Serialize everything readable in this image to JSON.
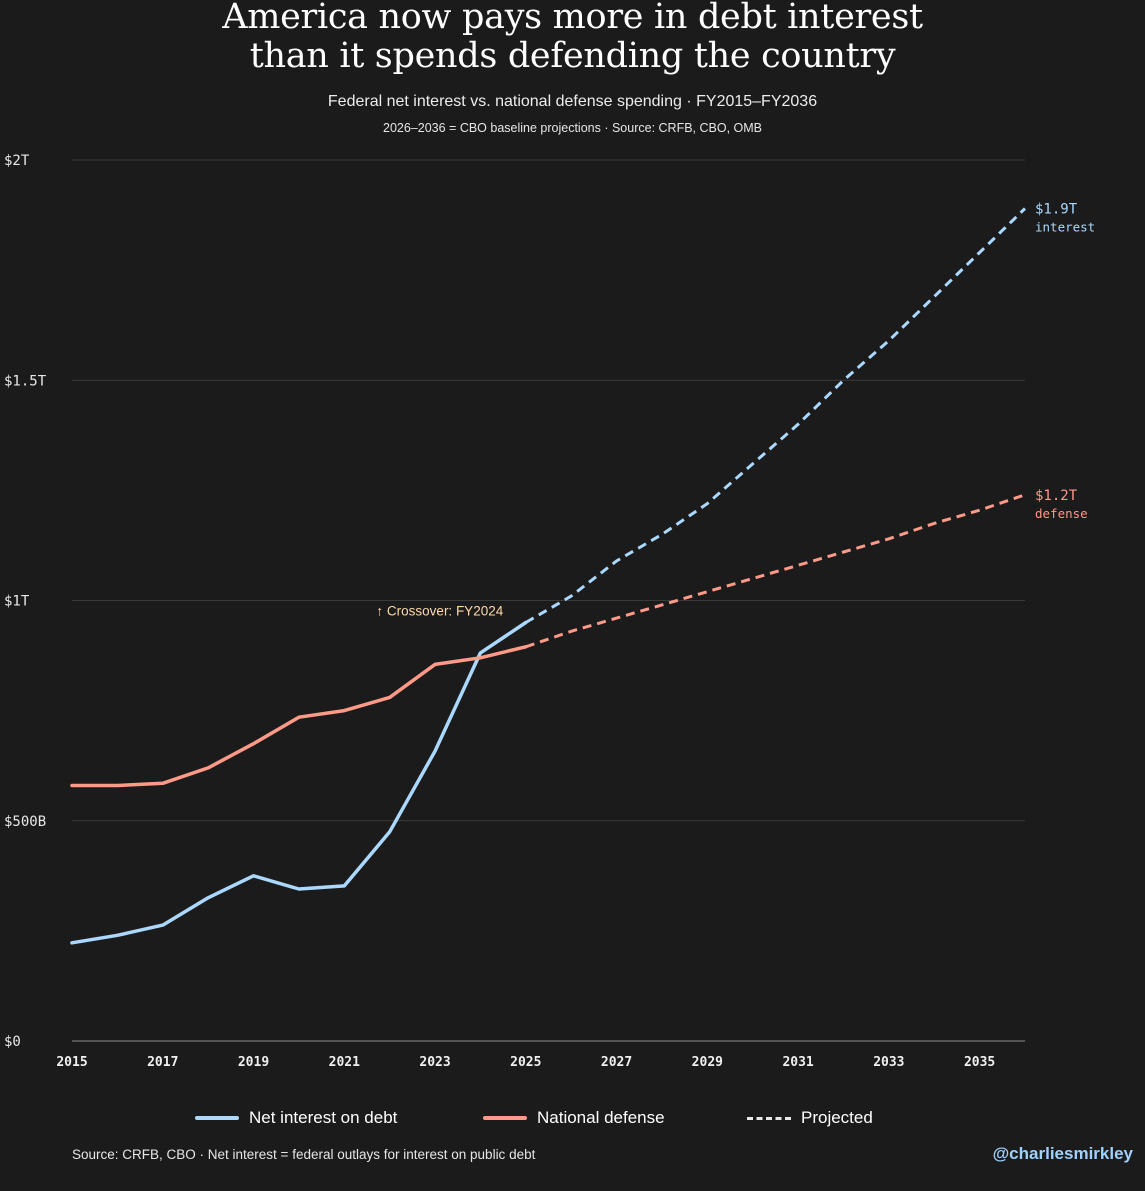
{
  "header": {
    "title_line1": "America now pays more in debt interest",
    "title_line2": "than it spends defending the country",
    "subtitle": "Federal net interest vs. national defense spending · FY2015–FY2036",
    "note": "2026–2036 = CBO baseline projections · Source: CRFB, CBO, OMB"
  },
  "colors": {
    "interest": "#aad8ff",
    "defense": "#ff9a88",
    "grid": "#3a3a3a",
    "axis": "#8a8a8a",
    "crossover": "#ffd9a8"
  },
  "chart_data": {
    "type": "line",
    "title": "America now pays more in debt interest than it spends defending the country",
    "xlabel": "",
    "ylabel": "",
    "xlim": [
      2015,
      2036
    ],
    "ylim": [
      0,
      2000
    ],
    "y_unit": "billions USD",
    "y_ticks": [
      {
        "value": 0,
        "label": "$0"
      },
      {
        "value": 500,
        "label": "$500B"
      },
      {
        "value": 1000,
        "label": "$1T"
      },
      {
        "value": 1500,
        "label": "$1.5T"
      },
      {
        "value": 2000,
        "label": "$2T"
      }
    ],
    "x_ticks": [
      "2015",
      "2017",
      "2019",
      "2021",
      "2023",
      "2025",
      "2027",
      "2029",
      "2031",
      "2033",
      "2035"
    ],
    "projection_start": 2025,
    "series": [
      {
        "name": "Net interest on debt",
        "key": "interest",
        "x": [
          2015,
          2016,
          2017,
          2018,
          2019,
          2020,
          2021,
          2022,
          2023,
          2024,
          2025,
          2026,
          2027,
          2028,
          2029,
          2030,
          2031,
          2032,
          2033,
          2034,
          2035,
          2036
        ],
        "values": [
          223,
          240,
          263,
          325,
          375,
          345,
          352,
          475,
          658,
          881,
          950,
          1010,
          1090,
          1150,
          1220,
          1310,
          1400,
          1500,
          1590,
          1690,
          1790,
          1890
        ]
      },
      {
        "name": "National defense",
        "key": "defense",
        "x": [
          2015,
          2016,
          2017,
          2018,
          2019,
          2020,
          2021,
          2022,
          2023,
          2024,
          2025,
          2026,
          2027,
          2028,
          2029,
          2030,
          2031,
          2032,
          2033,
          2034,
          2035,
          2036
        ],
        "values": [
          580,
          580,
          585,
          620,
          675,
          735,
          750,
          780,
          855,
          870,
          895,
          930,
          960,
          990,
          1020,
          1050,
          1080,
          1110,
          1140,
          1175,
          1205,
          1240
        ]
      }
    ],
    "end_labels": [
      {
        "series": "interest",
        "value": "$1.9T",
        "sub": "interest"
      },
      {
        "series": "defense",
        "value": "$1.2T",
        "sub": "defense"
      }
    ],
    "annotations": [
      {
        "text": "↑ Crossover: FY2024",
        "x": 2024,
        "y": 980
      }
    ],
    "legend": [
      "Net interest on debt",
      "National defense",
      "Projected"
    ],
    "legend_position": "bottom",
    "grid": true
  },
  "footer": {
    "source": "Source: CRFB, CBO · Net interest = federal outlays for interest on public debt",
    "handle": "@charliesmirkley"
  }
}
